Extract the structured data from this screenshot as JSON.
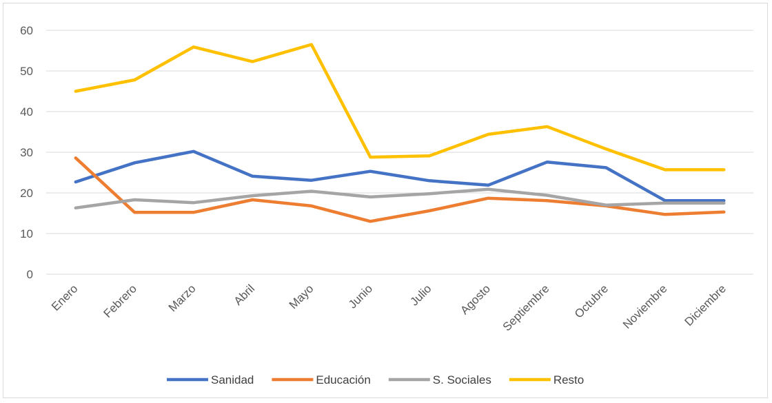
{
  "chart_data": {
    "type": "line",
    "title": "",
    "xlabel": "",
    "ylabel": "",
    "ylim": [
      0,
      60
    ],
    "yticks": [
      0,
      10,
      20,
      30,
      40,
      50,
      60
    ],
    "grid": true,
    "legend_position": "bottom",
    "categories": [
      "Enero",
      "Febrero",
      "Marzo",
      "Abril",
      "Mayo",
      "Junio",
      "Julio",
      "Agosto",
      "Septiembre",
      "Octubre",
      "Noviembre",
      "Diciembre"
    ],
    "series": [
      {
        "name": "Sanidad",
        "color": "#4472C4",
        "values": [
          22.7,
          27.4,
          30.2,
          24.1,
          23.1,
          25.3,
          23.0,
          21.9,
          27.6,
          26.2,
          18.1,
          18.1
        ]
      },
      {
        "name": "Educación",
        "color": "#ED7D31",
        "values": [
          28.6,
          15.2,
          15.2,
          18.3,
          16.8,
          13.0,
          15.6,
          18.7,
          18.1,
          16.8,
          14.7,
          15.3
        ]
      },
      {
        "name": "S. Sociales",
        "color": "#A5A5A5",
        "values": [
          16.3,
          18.3,
          17.6,
          19.3,
          20.4,
          19.0,
          19.8,
          20.9,
          19.4,
          17.0,
          17.5,
          17.5
        ]
      },
      {
        "name": "Resto",
        "color": "#FFC000",
        "values": [
          45.0,
          47.8,
          55.9,
          52.3,
          56.5,
          28.8,
          29.1,
          34.4,
          36.3,
          30.8,
          25.7,
          25.7
        ]
      }
    ]
  }
}
